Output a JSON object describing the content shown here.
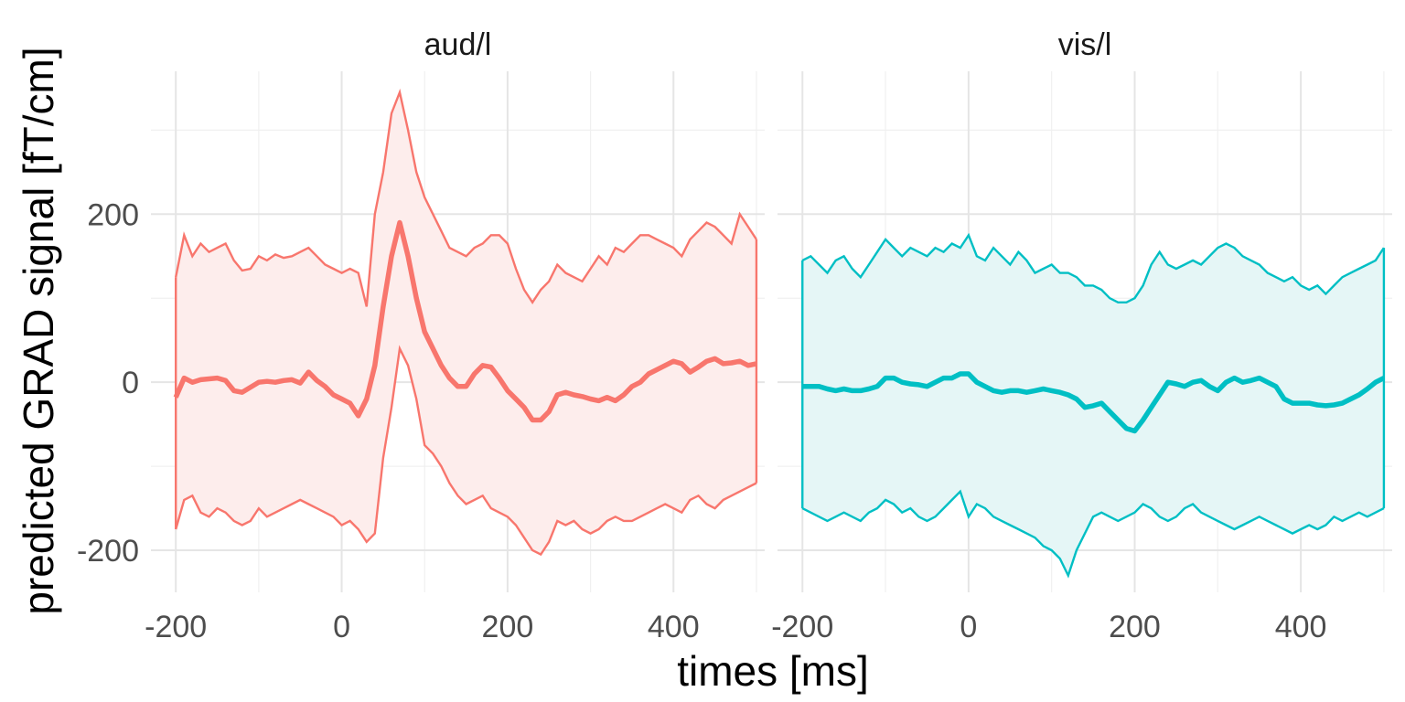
{
  "chart_data": {
    "type": "line",
    "xlabel": "times [ms]",
    "ylabel": "predicted GRAD signal [fT/cm]",
    "xlim": [
      -230,
      510
    ],
    "ylim": [
      -250,
      370
    ],
    "x_ticks": [
      -200,
      0,
      200,
      400
    ],
    "x_tick_labels": [
      "-200",
      "0",
      "200",
      "400"
    ],
    "y_ticks": [
      -200,
      0,
      200
    ],
    "y_tick_labels": [
      "-200",
      "0",
      "200"
    ],
    "grid": true,
    "legend": "none",
    "panels": [
      {
        "label": "aud/l",
        "color": "#F8766D",
        "fill": "#FDEDEC",
        "x": [
          -200,
          -190,
          -180,
          -170,
          -160,
          -150,
          -140,
          -130,
          -120,
          -110,
          -100,
          -90,
          -80,
          -70,
          -60,
          -50,
          -40,
          -30,
          -20,
          -10,
          0,
          10,
          20,
          30,
          40,
          50,
          60,
          70,
          80,
          90,
          100,
          110,
          120,
          130,
          140,
          150,
          160,
          170,
          180,
          190,
          200,
          210,
          220,
          230,
          240,
          250,
          260,
          270,
          280,
          290,
          300,
          310,
          320,
          330,
          340,
          350,
          360,
          370,
          380,
          390,
          400,
          410,
          420,
          430,
          440,
          450,
          460,
          470,
          480,
          490,
          500
        ],
        "mean": [
          -18,
          5,
          0,
          3,
          4,
          5,
          2,
          -10,
          -12,
          -6,
          0,
          1,
          0,
          2,
          3,
          -1,
          12,
          2,
          -5,
          -15,
          -20,
          -25,
          -40,
          -20,
          20,
          90,
          150,
          190,
          150,
          100,
          60,
          40,
          20,
          5,
          -5,
          -5,
          10,
          20,
          18,
          5,
          -10,
          -20,
          -30,
          -45,
          -45,
          -35,
          -15,
          -12,
          -15,
          -17,
          -20,
          -22,
          -18,
          -22,
          -15,
          -5,
          0,
          10,
          15,
          20,
          25,
          22,
          12,
          18,
          25,
          28,
          22,
          23,
          25,
          20,
          22
        ],
        "upper": [
          125,
          175,
          150,
          165,
          155,
          160,
          165,
          145,
          133,
          135,
          150,
          145,
          152,
          148,
          150,
          155,
          160,
          150,
          140,
          135,
          130,
          135,
          130,
          90,
          200,
          250,
          320,
          345,
          300,
          250,
          220,
          200,
          180,
          160,
          155,
          150,
          160,
          165,
          175,
          175,
          165,
          135,
          110,
          95,
          110,
          120,
          140,
          130,
          125,
          120,
          135,
          150,
          140,
          160,
          155,
          165,
          175,
          175,
          170,
          165,
          160,
          150,
          170,
          180,
          190,
          185,
          175,
          165,
          200,
          185,
          170
        ],
        "lower": [
          -175,
          -140,
          -135,
          -155,
          -160,
          -150,
          -155,
          -165,
          -170,
          -165,
          -150,
          -160,
          -155,
          -150,
          -145,
          -140,
          -145,
          -150,
          -155,
          -160,
          -170,
          -165,
          -175,
          -190,
          -180,
          -90,
          -30,
          40,
          20,
          -20,
          -75,
          -85,
          -100,
          -120,
          -135,
          -145,
          -140,
          -135,
          -150,
          -155,
          -160,
          -170,
          -185,
          -200,
          -205,
          -190,
          -165,
          -170,
          -165,
          -175,
          -180,
          -175,
          -165,
          -160,
          -165,
          -165,
          -160,
          -155,
          -150,
          -145,
          -150,
          -155,
          -140,
          -135,
          -145,
          -150,
          -140,
          -135,
          -130,
          -125,
          -120
        ]
      },
      {
        "label": "vis/l",
        "color": "#00BFC4",
        "fill": "#E5F6F6",
        "x": [
          -200,
          -190,
          -180,
          -170,
          -160,
          -150,
          -140,
          -130,
          -120,
          -110,
          -100,
          -90,
          -80,
          -70,
          -60,
          -50,
          -40,
          -30,
          -20,
          -10,
          0,
          10,
          20,
          30,
          40,
          50,
          60,
          70,
          80,
          90,
          100,
          110,
          120,
          130,
          140,
          150,
          160,
          170,
          180,
          190,
          200,
          210,
          220,
          230,
          240,
          250,
          260,
          270,
          280,
          290,
          300,
          310,
          320,
          330,
          340,
          350,
          360,
          370,
          380,
          390,
          400,
          410,
          420,
          430,
          440,
          450,
          460,
          470,
          480,
          490,
          500
        ],
        "mean": [
          -5,
          -5,
          -5,
          -8,
          -10,
          -8,
          -10,
          -10,
          -8,
          -5,
          5,
          5,
          0,
          -2,
          -3,
          -5,
          0,
          5,
          5,
          10,
          10,
          0,
          -5,
          -10,
          -12,
          -10,
          -10,
          -12,
          -10,
          -8,
          -10,
          -12,
          -15,
          -20,
          -30,
          -28,
          -25,
          -35,
          -45,
          -55,
          -58,
          -45,
          -30,
          -15,
          0,
          -2,
          -5,
          0,
          2,
          -5,
          -10,
          0,
          5,
          0,
          2,
          5,
          0,
          -5,
          -20,
          -25,
          -25,
          -25,
          -27,
          -28,
          -27,
          -25,
          -20,
          -15,
          -8,
          0,
          5
        ],
        "upper": [
          145,
          150,
          140,
          130,
          145,
          150,
          135,
          125,
          140,
          155,
          170,
          160,
          150,
          160,
          155,
          150,
          160,
          155,
          165,
          160,
          175,
          150,
          145,
          160,
          150,
          140,
          155,
          145,
          130,
          135,
          140,
          130,
          130,
          125,
          115,
          115,
          110,
          100,
          95,
          95,
          100,
          115,
          140,
          155,
          140,
          135,
          140,
          145,
          140,
          150,
          160,
          165,
          160,
          150,
          145,
          140,
          130,
          125,
          120,
          125,
          115,
          110,
          115,
          105,
          115,
          125,
          130,
          135,
          140,
          145,
          160
        ],
        "lower": [
          -150,
          -155,
          -160,
          -165,
          -160,
          -155,
          -160,
          -165,
          -155,
          -150,
          -140,
          -145,
          -155,
          -150,
          -160,
          -165,
          -160,
          -150,
          -140,
          -130,
          -160,
          -145,
          -150,
          -160,
          -165,
          -170,
          -175,
          -180,
          -185,
          -195,
          -200,
          -210,
          -230,
          -200,
          -180,
          -160,
          -155,
          -160,
          -165,
          -160,
          -155,
          -145,
          -150,
          -160,
          -165,
          -160,
          -150,
          -145,
          -155,
          -160,
          -165,
          -170,
          -175,
          -170,
          -165,
          -160,
          -165,
          -170,
          -175,
          -180,
          -175,
          -170,
          -175,
          -170,
          -160,
          -165,
          -160,
          -155,
          -160,
          -155,
          -150
        ]
      }
    ]
  }
}
